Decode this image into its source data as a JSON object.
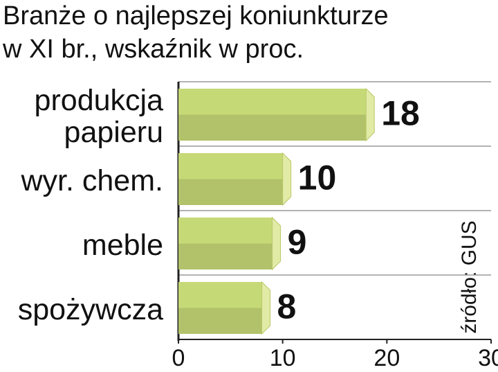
{
  "chart_data": {
    "type": "bar",
    "orientation": "horizontal",
    "title": "Branże o najlepszej koniunkturze",
    "subtitle": "w XI br., wskaźnik w proc.",
    "categories": [
      "produkcja\npapieru",
      "wyr. chem.",
      "meble",
      "spożywcza"
    ],
    "values": [
      18,
      10,
      9,
      8
    ],
    "color": "#c6d977",
    "xlim": [
      0,
      30
    ],
    "xticks": [
      0,
      10,
      20,
      30
    ],
    "source": "źródło: GUS"
  }
}
